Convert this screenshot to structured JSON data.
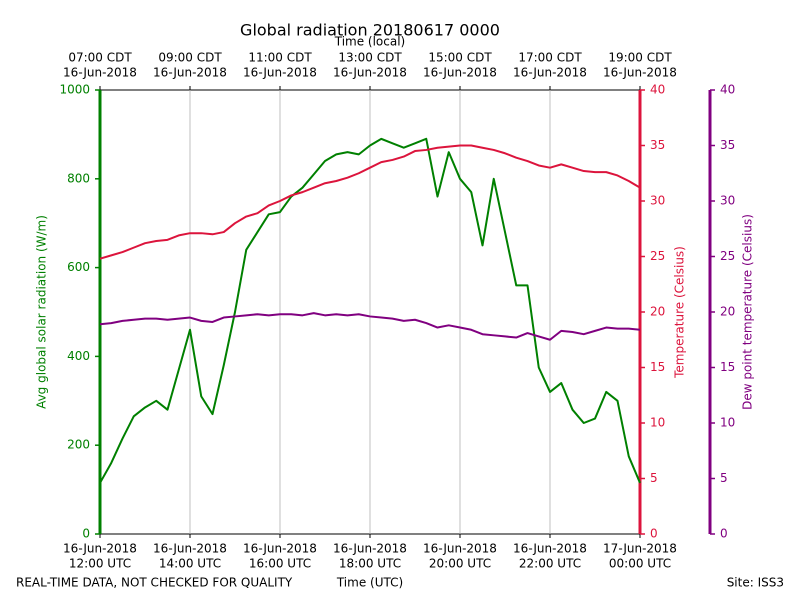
{
  "chart_data": {
    "type": "line",
    "title": "Global radiation 20180617 0000",
    "x2label": "Time (local)",
    "xlabel": "Time (UTC)",
    "note": "REAL-TIME DATA, NOT CHECKED FOR QUALITY",
    "site": "Site: ISS3",
    "ylabel": "Avg global solar radiation (W/m)",
    "y2label": "Temperature (Celsius)",
    "y3label": "Dew point temperature (Celsius)",
    "grid": true,
    "xlim": [
      "2018-06-16 12:00",
      "2018-06-17 00:00"
    ],
    "xticks": [
      {
        "value": "2018-06-16 12:00",
        "label": [
          "16-Jun-2018",
          "12:00 UTC"
        ]
      },
      {
        "value": "2018-06-16 14:00",
        "label": [
          "16-Jun-2018",
          "14:00 UTC"
        ]
      },
      {
        "value": "2018-06-16 16:00",
        "label": [
          "16-Jun-2018",
          "16:00 UTC"
        ]
      },
      {
        "value": "2018-06-16 18:00",
        "label": [
          "16-Jun-2018",
          "18:00 UTC"
        ]
      },
      {
        "value": "2018-06-16 20:00",
        "label": [
          "16-Jun-2018",
          "20:00 UTC"
        ]
      },
      {
        "value": "2018-06-16 22:00",
        "label": [
          "16-Jun-2018",
          "22:00 UTC"
        ]
      },
      {
        "value": "2018-06-17 00:00",
        "label": [
          "17-Jun-2018",
          "00:00 UTC"
        ]
      }
    ],
    "x2ticks": [
      {
        "value": "2018-06-16 12:00",
        "label": [
          "07:00 CDT",
          "16-Jun-2018"
        ]
      },
      {
        "value": "2018-06-16 14:00",
        "label": [
          "09:00 CDT",
          "16-Jun-2018"
        ]
      },
      {
        "value": "2018-06-16 16:00",
        "label": [
          "11:00 CDT",
          "16-Jun-2018"
        ]
      },
      {
        "value": "2018-06-16 18:00",
        "label": [
          "13:00 CDT",
          "16-Jun-2018"
        ]
      },
      {
        "value": "2018-06-16 20:00",
        "label": [
          "15:00 CDT",
          "16-Jun-2018"
        ]
      },
      {
        "value": "2018-06-16 22:00",
        "label": [
          "17:00 CDT",
          "16-Jun-2018"
        ]
      },
      {
        "value": "2018-06-17 00:00",
        "label": [
          "19:00 CDT",
          "16-Jun-2018"
        ]
      }
    ],
    "ylim": [
      0,
      1000
    ],
    "yticks": [
      0,
      200,
      400,
      600,
      800,
      1000
    ],
    "y2lim": [
      0,
      40
    ],
    "y2ticks": [
      0,
      5,
      10,
      15,
      20,
      25,
      30,
      35,
      40
    ],
    "y3lim": [
      0,
      40
    ],
    "y3ticks": [
      0,
      5,
      10,
      15,
      20,
      25,
      30,
      35,
      40
    ],
    "x": [
      "2018-06-16 12:00",
      "2018-06-16 12:15",
      "2018-06-16 12:30",
      "2018-06-16 12:45",
      "2018-06-16 13:00",
      "2018-06-16 13:15",
      "2018-06-16 13:30",
      "2018-06-16 13:45",
      "2018-06-16 14:00",
      "2018-06-16 14:15",
      "2018-06-16 14:30",
      "2018-06-16 14:45",
      "2018-06-16 15:00",
      "2018-06-16 15:15",
      "2018-06-16 15:30",
      "2018-06-16 15:45",
      "2018-06-16 16:00",
      "2018-06-16 16:15",
      "2018-06-16 16:30",
      "2018-06-16 16:45",
      "2018-06-16 17:00",
      "2018-06-16 17:15",
      "2018-06-16 17:30",
      "2018-06-16 17:45",
      "2018-06-16 18:00",
      "2018-06-16 18:15",
      "2018-06-16 18:30",
      "2018-06-16 18:45",
      "2018-06-16 19:00",
      "2018-06-16 19:15",
      "2018-06-16 19:30",
      "2018-06-16 19:45",
      "2018-06-16 20:00",
      "2018-06-16 20:15",
      "2018-06-16 20:30",
      "2018-06-16 20:45",
      "2018-06-16 21:00",
      "2018-06-16 21:15",
      "2018-06-16 21:30",
      "2018-06-16 21:45",
      "2018-06-16 22:00",
      "2018-06-16 22:15",
      "2018-06-16 22:30",
      "2018-06-16 22:45",
      "2018-06-16 23:00",
      "2018-06-16 23:15",
      "2018-06-16 23:30",
      "2018-06-16 23:45",
      "2018-06-17 00:00"
    ],
    "series": [
      {
        "name": "Avg global solar radiation",
        "color": "#008000",
        "axis": "y",
        "values": [
          115,
          160,
          215,
          265,
          285,
          300,
          280,
          370,
          460,
          310,
          270,
          380,
          500,
          640,
          680,
          720,
          725,
          760,
          780,
          810,
          840,
          855,
          860,
          855,
          875,
          890,
          880,
          870,
          880,
          890,
          760,
          860,
          800,
          770,
          650,
          800,
          680,
          560,
          560,
          375,
          320,
          340,
          280,
          250,
          260,
          320,
          300,
          175,
          115
        ]
      },
      {
        "name": "Temperature",
        "color": "#dc143c",
        "axis": "y2",
        "values": [
          24.8,
          25.1,
          25.4,
          25.8,
          26.2,
          26.4,
          26.5,
          26.9,
          27.1,
          27.1,
          27.0,
          27.2,
          28.0,
          28.6,
          28.9,
          29.6,
          30.0,
          30.5,
          30.8,
          31.2,
          31.6,
          31.8,
          32.1,
          32.5,
          33.0,
          33.5,
          33.7,
          34.0,
          34.5,
          34.6,
          34.8,
          34.9,
          35.0,
          35.0,
          34.8,
          34.6,
          34.3,
          33.9,
          33.6,
          33.2,
          33.0,
          33.3,
          33.0,
          32.7,
          32.6,
          32.6,
          32.3,
          31.8,
          31.2
        ]
      },
      {
        "name": "Dew point temperature",
        "color": "#800080",
        "axis": "y3",
        "values": [
          18.9,
          19.0,
          19.2,
          19.3,
          19.4,
          19.4,
          19.3,
          19.4,
          19.5,
          19.2,
          19.1,
          19.5,
          19.6,
          19.7,
          19.8,
          19.7,
          19.8,
          19.8,
          19.7,
          19.9,
          19.7,
          19.8,
          19.7,
          19.8,
          19.6,
          19.5,
          19.4,
          19.2,
          19.3,
          19.0,
          18.6,
          18.8,
          18.6,
          18.4,
          18.0,
          17.9,
          17.8,
          17.7,
          18.1,
          17.8,
          17.5,
          18.3,
          18.2,
          18.0,
          18.3,
          18.6,
          18.5,
          18.5,
          18.4
        ]
      }
    ]
  }
}
